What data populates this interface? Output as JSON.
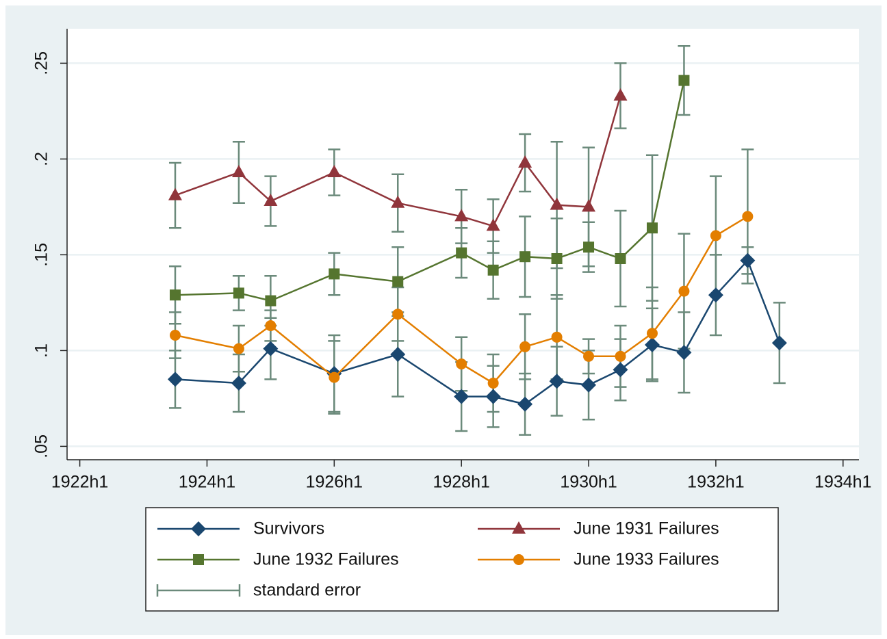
{
  "chart_data": {
    "type": "line",
    "x": [
      1923.5,
      1924.5,
      1925,
      1926,
      1927,
      1928,
      1928.5,
      1929,
      1929.5,
      1930,
      1930.5,
      1931,
      1931.5,
      1932,
      1932.5,
      1933
    ],
    "xlim": [
      1921.8,
      1934.25
    ],
    "xticks": [
      {
        "value": 1922,
        "label": "1922h1"
      },
      {
        "value": 1924,
        "label": "1924h1"
      },
      {
        "value": 1926,
        "label": "1926h1"
      },
      {
        "value": 1928,
        "label": "1928h1"
      },
      {
        "value": 1930,
        "label": "1930h1"
      },
      {
        "value": 1932,
        "label": "1932h1"
      },
      {
        "value": 1934,
        "label": "1934h1"
      }
    ],
    "ylim": [
      0.043,
      0.268
    ],
    "yticks": [
      {
        "value": 0.05,
        "label": ".05"
      },
      {
        "value": 0.1,
        "label": ".1"
      },
      {
        "value": 0.15,
        "label": ".15"
      },
      {
        "value": 0.2,
        "label": ".2"
      },
      {
        "value": 0.25,
        "label": ".25"
      }
    ],
    "grid": true,
    "error_label": "standard error",
    "error_color": "#6b8a7b",
    "series": [
      {
        "name": "Survivors",
        "color": "#1a476f",
        "marker": "diamond",
        "values": [
          0.085,
          0.083,
          0.101,
          0.088,
          0.098,
          0.076,
          0.076,
          0.072,
          0.084,
          0.082,
          0.09,
          0.103,
          0.099,
          0.129,
          0.147,
          0.104
        ],
        "errors": [
          0.015,
          0.015,
          0.016,
          0.02,
          0.022,
          0.018,
          0.016,
          0.016,
          0.018,
          0.018,
          0.016,
          0.019,
          0.021,
          0.021,
          0.007,
          0.021
        ]
      },
      {
        "name": "June 1931 Failures",
        "color": "#90353b",
        "marker": "triangle",
        "values": [
          0.181,
          0.193,
          0.178,
          0.193,
          0.177,
          0.17,
          0.165,
          0.198,
          0.176,
          0.175,
          0.233,
          null,
          null,
          null,
          null,
          null
        ],
        "errors": [
          0.017,
          0.016,
          0.013,
          0.012,
          0.015,
          0.014,
          0.014,
          0.015,
          0.033,
          0.031,
          0.017,
          null,
          null,
          null,
          null,
          null
        ]
      },
      {
        "name": "June 1932 Failures",
        "color": "#55752f",
        "marker": "square",
        "values": [
          0.129,
          0.13,
          0.126,
          0.14,
          0.136,
          0.151,
          0.142,
          0.149,
          0.148,
          0.154,
          0.148,
          0.164,
          0.241,
          null,
          null,
          null
        ],
        "errors": [
          0.015,
          0.009,
          0.013,
          0.011,
          0.018,
          0.013,
          0.015,
          0.021,
          0.021,
          0.013,
          0.025,
          0.038,
          0.018,
          null,
          null,
          null
        ]
      },
      {
        "name": "June 1933 Failures",
        "color": "#e37e00",
        "marker": "circle",
        "values": [
          0.108,
          0.101,
          0.113,
          0.086,
          0.119,
          0.093,
          0.083,
          0.102,
          0.107,
          0.097,
          0.097,
          0.109,
          0.131,
          0.16,
          0.17,
          null
        ],
        "errors": [
          0.012,
          0.012,
          0.008,
          0.019,
          0.014,
          0.014,
          0.015,
          0.017,
          0.022,
          0.009,
          0.016,
          0.024,
          0.03,
          0.031,
          0.035,
          null
        ]
      }
    ]
  }
}
